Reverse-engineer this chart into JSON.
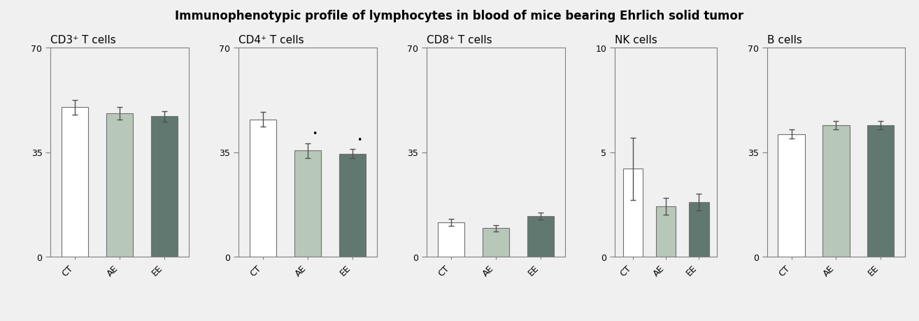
{
  "title": "Immunophenotypic profile of lymphocytes in blood of mice bearing Ehrlich solid tumor",
  "panels": [
    {
      "subtitle": "CD3⁺ T cells",
      "ylim": [
        0,
        70
      ],
      "yticks": [
        0,
        35,
        70
      ],
      "bars": [
        50.0,
        48.0,
        47.0
      ],
      "errors": [
        2.5,
        2.0,
        1.8
      ],
      "stars": [
        false,
        false,
        false
      ]
    },
    {
      "subtitle": "CD4⁺ T cells",
      "ylim": [
        0,
        70
      ],
      "yticks": [
        0,
        35,
        70
      ],
      "bars": [
        46.0,
        35.5,
        34.5
      ],
      "errors": [
        2.5,
        2.5,
        1.5
      ],
      "stars": [
        false,
        true,
        true
      ]
    },
    {
      "subtitle": "CD8⁺ T cells",
      "ylim": [
        0,
        70
      ],
      "yticks": [
        0,
        35,
        70
      ],
      "bars": [
        11.5,
        9.5,
        13.5
      ],
      "errors": [
        1.2,
        1.0,
        1.2
      ],
      "stars": [
        false,
        false,
        false
      ]
    },
    {
      "subtitle": "NK cells",
      "ylim": [
        0,
        10
      ],
      "yticks": [
        0,
        5,
        10
      ],
      "bars": [
        4.2,
        2.4,
        2.6
      ],
      "errors": [
        1.5,
        0.4,
        0.4
      ],
      "stars": [
        false,
        false,
        false
      ]
    },
    {
      "subtitle": "B cells",
      "ylim": [
        0,
        70
      ],
      "yticks": [
        0,
        35,
        70
      ],
      "bars": [
        41.0,
        44.0,
        44.0
      ],
      "errors": [
        1.5,
        1.5,
        1.5
      ],
      "stars": [
        false,
        false,
        false
      ]
    }
  ],
  "bar_colors": [
    "#ffffff",
    "#b8c8b8",
    "#607870"
  ],
  "bar_edgecolor": "#707070",
  "categories": [
    "CT",
    "AE",
    "EE"
  ],
  "background_color": "#f0f0f0",
  "panel_facecolor": "#f0f0f0",
  "title_fontsize": 12,
  "subtitle_fontsize": 11,
  "tick_fontsize": 9,
  "xlabel_fontsize": 9
}
